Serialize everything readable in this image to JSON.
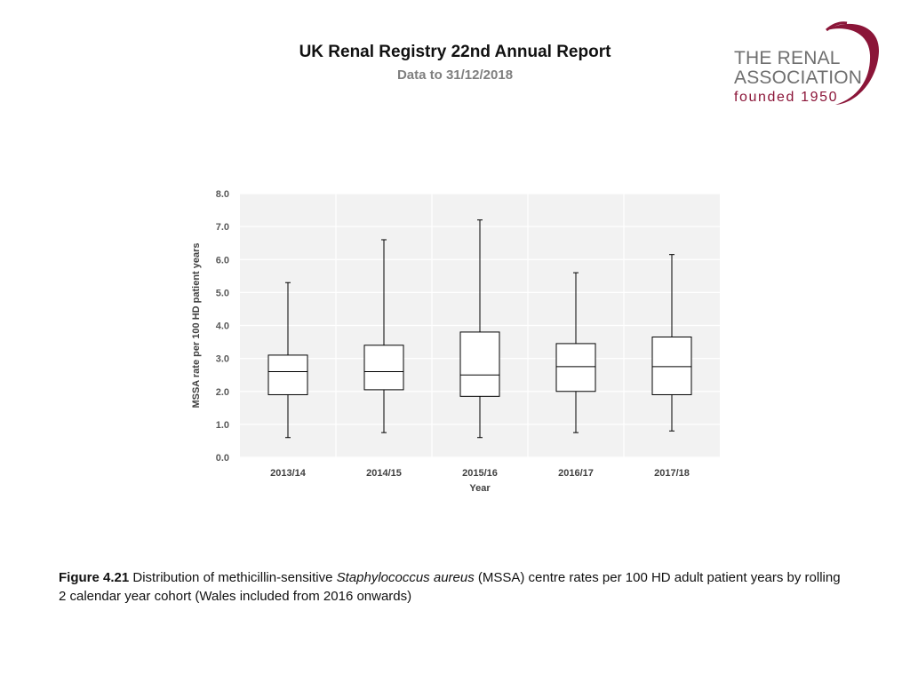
{
  "header": {
    "title": "UK Renal Registry 22nd Annual Report",
    "subtitle": "Data to 31/12/2018"
  },
  "logo": {
    "line1": "THE RENAL",
    "line2": "ASSOCIATION",
    "line3": "founded 1950",
    "accent_color": "#8b1538",
    "text_color": "#6f6f6f"
  },
  "chart_data": {
    "type": "box",
    "xlabel": "Year",
    "ylabel": "MSSA rate per 100 HD patient years",
    "ylim": [
      0,
      8
    ],
    "yticks": [
      "0.0",
      "1.0",
      "2.0",
      "3.0",
      "4.0",
      "5.0",
      "6.0",
      "7.0",
      "8.0"
    ],
    "grid": true,
    "categories": [
      "2013/14",
      "2014/15",
      "2015/16",
      "2016/17",
      "2017/18"
    ],
    "boxes": [
      {
        "min": 0.6,
        "q1": 1.9,
        "median": 2.6,
        "q3": 3.1,
        "max": 5.3
      },
      {
        "min": 0.75,
        "q1": 2.05,
        "median": 2.6,
        "q3": 3.4,
        "max": 6.6
      },
      {
        "min": 0.6,
        "q1": 1.85,
        "median": 2.5,
        "q3": 3.8,
        "max": 7.2
      },
      {
        "min": 0.75,
        "q1": 2.0,
        "median": 2.75,
        "q3": 3.45,
        "max": 5.6
      },
      {
        "min": 0.8,
        "q1": 1.9,
        "median": 2.75,
        "q3": 3.65,
        "max": 6.15
      }
    ]
  },
  "caption": {
    "label": "Figure 4.21",
    "text_before": " Distribution of methicillin-sensitive ",
    "italic": "Staphylococcus aureus",
    "text_after": " (MSSA) centre rates per 100 HD adult patient years by rolling 2 calendar year cohort (Wales included from 2016 onwards)"
  }
}
